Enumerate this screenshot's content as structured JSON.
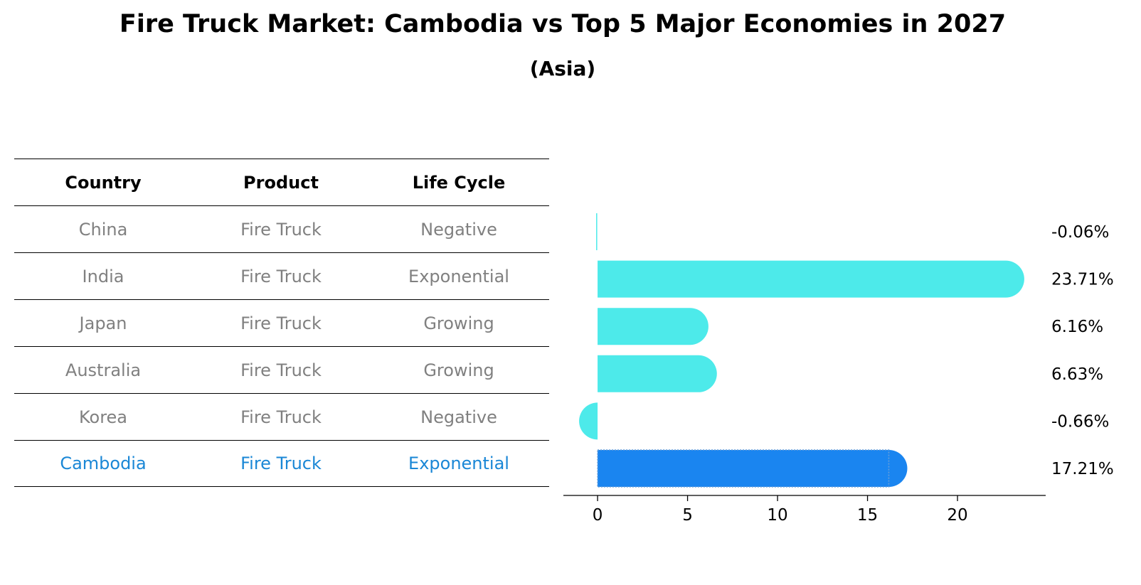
{
  "title": "Fire Truck Market: Cambodia vs Top 5 Major Economies in 2027",
  "subtitle": "(Asia)",
  "table": {
    "headers": [
      "Country",
      "Product",
      "Life Cycle"
    ],
    "rows": [
      [
        "China",
        "Fire Truck",
        "Negative"
      ],
      [
        "India",
        "Fire Truck",
        "Exponential"
      ],
      [
        "Japan",
        "Fire Truck",
        "Growing"
      ],
      [
        "Australia",
        "Fire Truck",
        "Growing"
      ],
      [
        "Korea",
        "Fire Truck",
        "Negative"
      ],
      [
        "Cambodia",
        "Fire Truck",
        "Exponential"
      ]
    ]
  },
  "chart_data": {
    "type": "bar",
    "orientation": "horizontal",
    "categories": [
      "China",
      "India",
      "Japan",
      "Australia",
      "Korea",
      "Cambodia"
    ],
    "values": [
      -0.06,
      23.71,
      6.16,
      6.63,
      -0.66,
      17.21
    ],
    "value_labels": [
      "-0.06%",
      "23.71%",
      "6.16%",
      "6.63%",
      "-0.66%",
      "17.21%"
    ],
    "xticks": [
      0,
      5,
      10,
      15,
      20
    ],
    "xlim": [
      -1.9,
      24.9
    ],
    "highlight": "Cambodia",
    "colors": {
      "default": "#4deaea",
      "highlight": "#1a85f0",
      "highlight_text": "#1a87d6",
      "muted_text": "#808080"
    }
  }
}
